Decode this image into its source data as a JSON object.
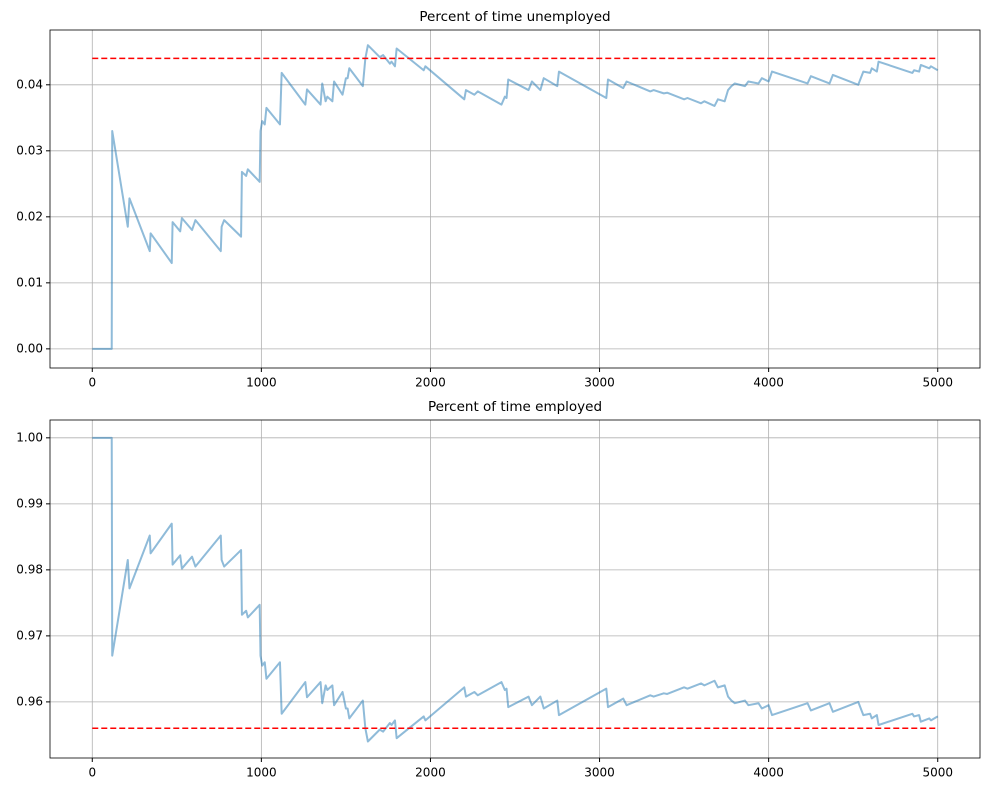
{
  "chart_data": [
    {
      "type": "line",
      "title": "Percent of time unemployed",
      "x": [
        0,
        115,
        118,
        210,
        220,
        340,
        345,
        470,
        475,
        520,
        530,
        590,
        610,
        760,
        765,
        780,
        880,
        885,
        910,
        920,
        990,
        995,
        1005,
        1020,
        1030,
        1110,
        1120,
        1260,
        1270,
        1350,
        1360,
        1380,
        1390,
        1420,
        1430,
        1480,
        1500,
        1510,
        1520,
        1600,
        1615,
        1630,
        1700,
        1720,
        1760,
        1770,
        1790,
        1800,
        1960,
        1970,
        2200,
        2210,
        2260,
        2280,
        2420,
        2440,
        2450,
        2460,
        2580,
        2600,
        2650,
        2670,
        2750,
        2760,
        3040,
        3050,
        3140,
        3160,
        3300,
        3320,
        3380,
        3400,
        3500,
        3520,
        3600,
        3620,
        3680,
        3700,
        3740,
        3760,
        3780,
        3800,
        3860,
        3880,
        3940,
        3960,
        4000,
        4020,
        4230,
        4250,
        4360,
        4380,
        4530,
        4560,
        4600,
        4610,
        4640,
        4650,
        4850,
        4860,
        4890,
        4900,
        4950,
        4960,
        5000
      ],
      "series": [
        {
          "color": "#1f77b4",
          "alpha": 0.5,
          "values": [
            0,
            0,
            0.033,
            0.0185,
            0.0228,
            0.0148,
            0.0175,
            0.013,
            0.0192,
            0.0178,
            0.0198,
            0.018,
            0.0195,
            0.0148,
            0.0185,
            0.0195,
            0.017,
            0.0268,
            0.0262,
            0.0272,
            0.0253,
            0.033,
            0.0345,
            0.034,
            0.0365,
            0.034,
            0.0418,
            0.037,
            0.0393,
            0.037,
            0.0402,
            0.0375,
            0.0382,
            0.0375,
            0.0405,
            0.0385,
            0.041,
            0.041,
            0.0425,
            0.0398,
            0.044,
            0.046,
            0.0442,
            0.0445,
            0.0432,
            0.0435,
            0.0428,
            0.0455,
            0.0422,
            0.0428,
            0.0378,
            0.0392,
            0.0385,
            0.039,
            0.037,
            0.0382,
            0.038,
            0.0408,
            0.0392,
            0.0405,
            0.0392,
            0.041,
            0.0398,
            0.042,
            0.038,
            0.0408,
            0.0395,
            0.0405,
            0.039,
            0.0392,
            0.0387,
            0.0388,
            0.0378,
            0.038,
            0.0372,
            0.0375,
            0.0368,
            0.0378,
            0.0375,
            0.0392,
            0.0398,
            0.0402,
            0.0398,
            0.0405,
            0.0402,
            0.041,
            0.0405,
            0.042,
            0.0402,
            0.0413,
            0.0402,
            0.0415,
            0.04,
            0.042,
            0.0418,
            0.0425,
            0.042,
            0.0435,
            0.0418,
            0.0422,
            0.042,
            0.043,
            0.0425,
            0.0428,
            0.0422
          ]
        }
      ],
      "reference": {
        "y": 0.044,
        "x": [
          0,
          5000
        ],
        "color": "#ff0000"
      },
      "xlim": [
        -250,
        5250
      ],
      "xticks": [
        0,
        1000,
        2000,
        3000,
        4000,
        5000
      ],
      "ylim": [
        -0.0029,
        0.0483
      ],
      "yticks": [
        {
          "value": 0,
          "label": "0.00"
        },
        0.01,
        0.02,
        0.03,
        0.04
      ],
      "grid": true
    },
    {
      "type": "line",
      "title": "Percent of time employed",
      "x": [
        0,
        115,
        118,
        210,
        220,
        340,
        345,
        470,
        475,
        520,
        530,
        590,
        610,
        760,
        765,
        780,
        880,
        885,
        910,
        920,
        990,
        995,
        1005,
        1020,
        1030,
        1110,
        1120,
        1260,
        1270,
        1350,
        1360,
        1380,
        1390,
        1420,
        1430,
        1480,
        1500,
        1510,
        1520,
        1600,
        1615,
        1630,
        1700,
        1720,
        1760,
        1770,
        1790,
        1800,
        1960,
        1970,
        2200,
        2210,
        2260,
        2280,
        2420,
        2440,
        2450,
        2460,
        2580,
        2600,
        2650,
        2670,
        2750,
        2760,
        3040,
        3050,
        3140,
        3160,
        3300,
        3320,
        3380,
        3400,
        3500,
        3520,
        3600,
        3620,
        3680,
        3700,
        3740,
        3760,
        3780,
        3800,
        3860,
        3880,
        3940,
        3960,
        4000,
        4020,
        4230,
        4250,
        4360,
        4380,
        4530,
        4560,
        4600,
        4610,
        4640,
        4650,
        4850,
        4860,
        4890,
        4900,
        4950,
        4960,
        5000
      ],
      "series": [
        {
          "color": "#1f77b4",
          "alpha": 0.5,
          "values": [
            1,
            1,
            0.967,
            0.9815,
            0.9772,
            0.9852,
            0.9825,
            0.987,
            0.9808,
            0.9822,
            0.9802,
            0.982,
            0.9805,
            0.9852,
            0.9815,
            0.9805,
            0.983,
            0.9732,
            0.9738,
            0.9728,
            0.9747,
            0.967,
            0.9655,
            0.966,
            0.9635,
            0.966,
            0.9582,
            0.963,
            0.9607,
            0.963,
            0.9598,
            0.9625,
            0.9618,
            0.9625,
            0.9595,
            0.9615,
            0.959,
            0.959,
            0.9575,
            0.9602,
            0.956,
            0.954,
            0.9558,
            0.9555,
            0.9568,
            0.9565,
            0.9572,
            0.9545,
            0.9578,
            0.9572,
            0.9622,
            0.9608,
            0.9615,
            0.961,
            0.963,
            0.9618,
            0.962,
            0.9592,
            0.9608,
            0.9595,
            0.9608,
            0.959,
            0.9602,
            0.958,
            0.962,
            0.9592,
            0.9605,
            0.9595,
            0.961,
            0.9608,
            0.9613,
            0.9612,
            0.9622,
            0.962,
            0.9628,
            0.9625,
            0.9632,
            0.9622,
            0.9625,
            0.9608,
            0.9602,
            0.9598,
            0.9602,
            0.9595,
            0.9598,
            0.959,
            0.9595,
            0.958,
            0.9598,
            0.9587,
            0.9598,
            0.9585,
            0.96,
            0.958,
            0.9582,
            0.9575,
            0.958,
            0.9565,
            0.9582,
            0.9578,
            0.958,
            0.957,
            0.9575,
            0.9572,
            0.9578
          ]
        }
      ],
      "reference": {
        "y": 0.956,
        "x": [
          0,
          5000
        ],
        "color": "#ff0000"
      },
      "xlim": [
        -250,
        5250
      ],
      "xticks": [
        0,
        1000,
        2000,
        3000,
        4000,
        5000
      ],
      "ylim": [
        0.9515,
        1.0027
      ],
      "yticks": [
        0.96,
        0.97,
        0.98,
        0.99,
        {
          "value": 1,
          "label": "1.00"
        }
      ],
      "grid": true
    }
  ]
}
